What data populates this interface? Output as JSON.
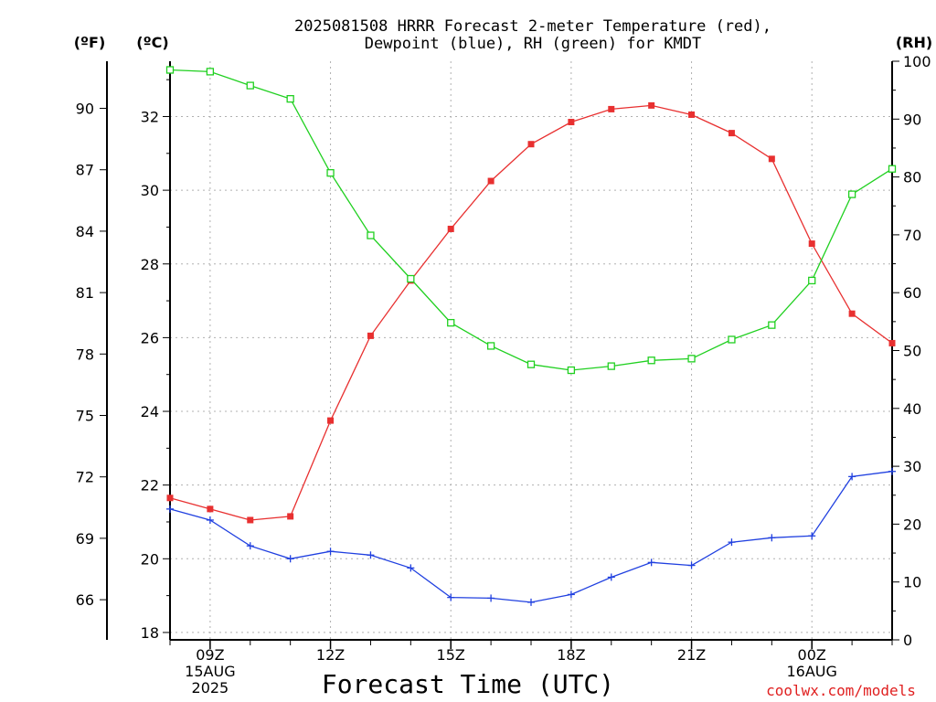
{
  "chart_data": {
    "type": "line",
    "title_line1": "2025081508 HRRR Forecast 2-meter Temperature (red),",
    "title_line2": "Dewpoint (blue), RH (green) for KMDT",
    "unit_f": "(ºF)",
    "unit_c": "(ºC)",
    "unit_rh": "(RH)",
    "xlabel": "Forecast Time (UTC)",
    "credit": "coolwx.com/models",
    "x_hours": [
      8,
      9,
      10,
      11,
      12,
      13,
      14,
      15,
      16,
      17,
      18,
      19,
      20,
      21,
      22,
      23,
      24,
      25,
      26
    ],
    "x_ticks": [
      {
        "hour": 9,
        "lines": [
          "09Z",
          "15AUG",
          "2025"
        ]
      },
      {
        "hour": 12,
        "lines": [
          "12Z"
        ]
      },
      {
        "hour": 15,
        "lines": [
          "15Z"
        ]
      },
      {
        "hour": 18,
        "lines": [
          "18Z"
        ]
      },
      {
        "hour": 21,
        "lines": [
          "21Z"
        ]
      },
      {
        "hour": 24,
        "lines": [
          "00Z",
          "16AUG"
        ]
      }
    ],
    "x_range": [
      8,
      26
    ],
    "celsius_ticks": [
      18,
      20,
      22,
      24,
      26,
      28,
      30,
      32
    ],
    "celsius_range": [
      17.8,
      33.5
    ],
    "fahrenheit_ticks": [
      66,
      69,
      72,
      75,
      78,
      81,
      84,
      87,
      90
    ],
    "rh_ticks": [
      0,
      10,
      20,
      30,
      40,
      50,
      60,
      70,
      80,
      90,
      100
    ],
    "rh_range": [
      0,
      100
    ],
    "grid": true,
    "series": [
      {
        "key": "temperature",
        "color": "#e83030",
        "marker": "filled-square",
        "axis": "celsius",
        "values": [
          21.65,
          21.35,
          21.05,
          21.15,
          23.75,
          26.05,
          27.55,
          28.95,
          30.25,
          31.25,
          31.85,
          32.2,
          32.3,
          32.05,
          31.55,
          30.85,
          28.55,
          26.65,
          25.85
        ]
      },
      {
        "key": "dewpoint",
        "color": "#2040e0",
        "marker": "plus",
        "axis": "celsius",
        "values": [
          21.35,
          21.05,
          20.35,
          20.0,
          20.2,
          20.1,
          19.75,
          18.95,
          18.93,
          18.82,
          19.03,
          19.5,
          19.9,
          19.82,
          20.45,
          20.57,
          20.62,
          22.23,
          22.37
        ]
      },
      {
        "key": "rh",
        "color": "#20d020",
        "marker": "open-square",
        "axis": "rh",
        "values": [
          98.5,
          98.2,
          95.8,
          93.5,
          80.7,
          69.9,
          62.4,
          54.8,
          50.8,
          47.6,
          46.6,
          47.3,
          48.3,
          48.6,
          51.9,
          54.4,
          62.1,
          77.0,
          81.4
        ]
      }
    ]
  }
}
